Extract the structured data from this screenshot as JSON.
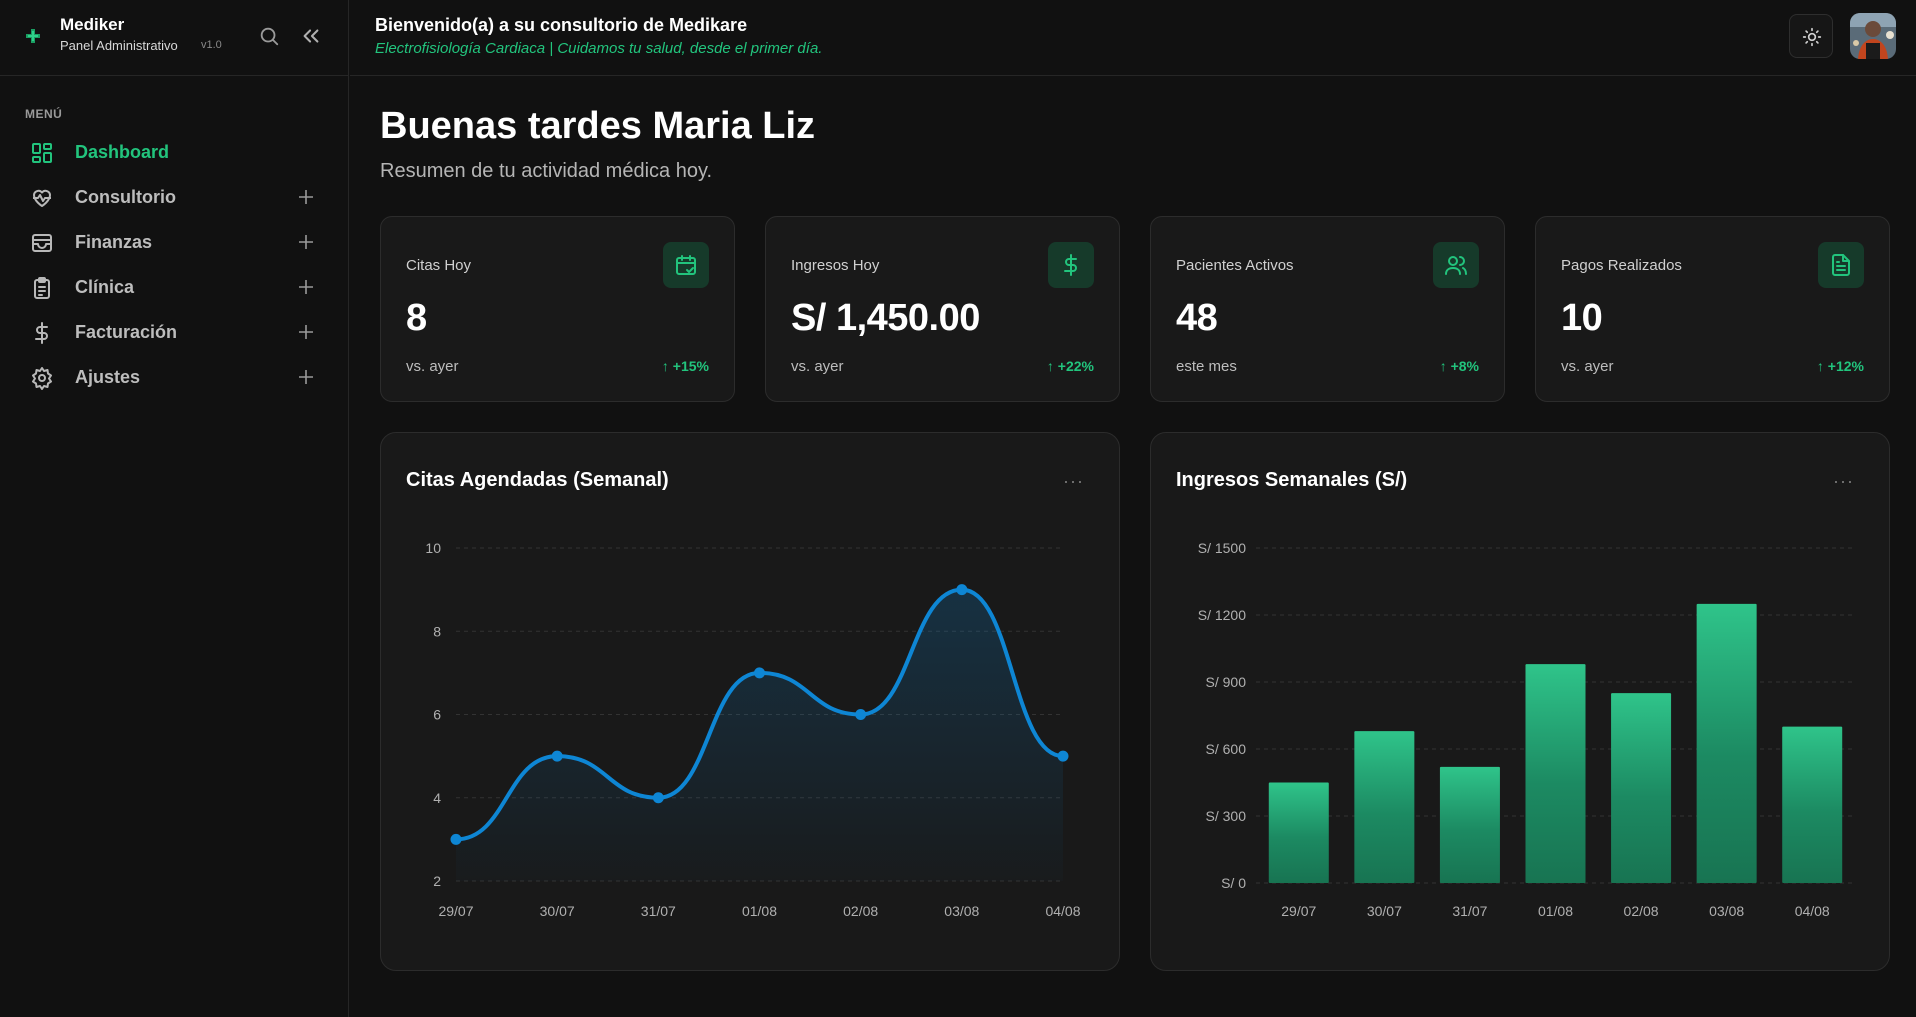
{
  "sidebar": {
    "brand_name": "Mediker",
    "brand_sub": "Panel Administrativo",
    "version": "v1.0",
    "menu_title": "MENÚ",
    "items": [
      {
        "label": "Dashboard",
        "icon": "dashboard-icon",
        "active": true
      },
      {
        "label": "Consultorio",
        "icon": "heart-pulse-icon"
      },
      {
        "label": "Finanzas",
        "icon": "wallet-icon"
      },
      {
        "label": "Clínica",
        "icon": "clipboard-icon"
      },
      {
        "label": "Facturación",
        "icon": "dollar-icon"
      },
      {
        "label": "Ajustes",
        "icon": "gear-icon"
      }
    ]
  },
  "header": {
    "title": "Bienvenido(a) a su consultorio de Medikare",
    "subtitle": "Electrofisiología Cardiaca | Cuidamos tu salud, desde el primer día."
  },
  "main": {
    "greeting": "Buenas tardes Maria Liz",
    "greeting_sub": "Resumen de tu actividad médica hoy.",
    "stats": [
      {
        "label": "Citas Hoy",
        "value": "8",
        "foot": "vs. ayer",
        "change": "+15%",
        "icon": "calendar-check-icon"
      },
      {
        "label": "Ingresos Hoy",
        "value": "S/ 1,450.00",
        "foot": "vs. ayer",
        "change": "+22%",
        "icon": "dollar-icon"
      },
      {
        "label": "Pacientes Activos",
        "value": "48",
        "foot": "este mes",
        "change": "+8%",
        "icon": "users-icon"
      },
      {
        "label": "Pagos Realizados",
        "value": "10",
        "foot": "vs. ayer",
        "change": "+12%",
        "icon": "file-text-icon"
      }
    ]
  },
  "colors": {
    "accent": "#22c47d",
    "line": "#0e86d4",
    "bar_top": "#2fc48a",
    "bar_bottom": "#1a7a58"
  },
  "chart_data": [
    {
      "type": "line",
      "title": "Citas Agendadas (Semanal)",
      "categories": [
        "29/07",
        "30/07",
        "31/07",
        "01/08",
        "02/08",
        "03/08",
        "04/08"
      ],
      "values": [
        3,
        5,
        4,
        7,
        6,
        9,
        5
      ],
      "ylim": [
        2,
        10
      ],
      "yticks": [
        "2",
        "4",
        "6",
        "8",
        "10"
      ],
      "ytick_values": [
        2,
        4,
        6,
        8,
        10
      ],
      "grid": true
    },
    {
      "type": "bar",
      "title": "Ingresos Semanales (S/)",
      "categories": [
        "29/07",
        "30/07",
        "31/07",
        "01/08",
        "02/08",
        "03/08",
        "04/08"
      ],
      "values": [
        450,
        680,
        520,
        980,
        850,
        1250,
        700
      ],
      "ylim": [
        0,
        1500
      ],
      "yticks": [
        "S/ 0",
        "S/ 300",
        "S/ 600",
        "S/ 900",
        "S/ 1200",
        "S/ 1500"
      ],
      "ytick_values": [
        0,
        300,
        600,
        900,
        1200,
        1500
      ],
      "grid": true
    }
  ]
}
